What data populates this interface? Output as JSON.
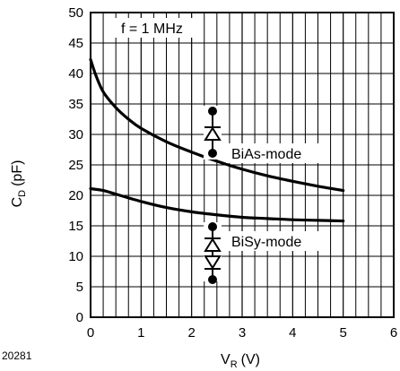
{
  "figure_id": "20281",
  "chart_data": {
    "type": "line",
    "annotation_top": "f = 1 MHz",
    "x_axis": {
      "label_main": "V",
      "label_sub": "R",
      "label_unit": "(V)",
      "range": [
        0,
        6
      ],
      "ticks": [
        0,
        1,
        2,
        3,
        4,
        5,
        6
      ]
    },
    "y_axis": {
      "label_main": "C",
      "label_sub": "D",
      "label_unit": "(pF)",
      "range": [
        0,
        50
      ],
      "ticks": [
        0,
        5,
        10,
        15,
        20,
        25,
        30,
        35,
        40,
        45,
        50
      ]
    },
    "grid": true,
    "series": [
      {
        "name": "BiAs-mode",
        "x": [
          0,
          0.1,
          0.25,
          0.5,
          0.75,
          1,
          1.5,
          2,
          2.5,
          3,
          3.5,
          4,
          4.5,
          5
        ],
        "y": [
          42.3,
          39.8,
          37.0,
          34.4,
          32.5,
          31.0,
          28.8,
          27.1,
          25.6,
          24.3,
          23.2,
          22.3,
          21.5,
          20.8
        ]
      },
      {
        "name": "BiSy-mode",
        "x": [
          0,
          0.25,
          0.5,
          1,
          1.5,
          2,
          2.5,
          3,
          3.5,
          4,
          4.5,
          5
        ],
        "y": [
          21.1,
          20.8,
          20.2,
          19.0,
          18.0,
          17.3,
          16.8,
          16.4,
          16.2,
          16.0,
          15.9,
          15.8
        ]
      }
    ]
  }
}
